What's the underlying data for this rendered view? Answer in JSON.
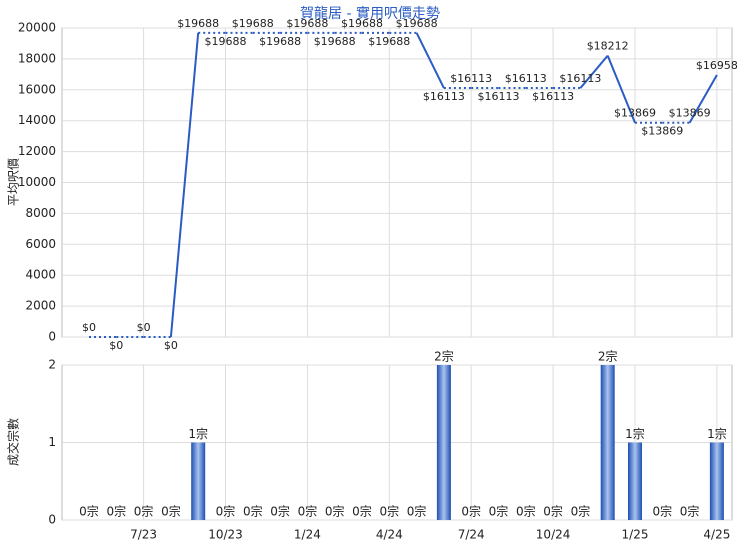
{
  "chart_data": [
    {
      "type": "line",
      "title": "賀龍居 - 實用呎價走勢",
      "y_label": "平均呎價",
      "color": "#2a5cc4",
      "grid": true,
      "values": [
        0,
        0,
        0,
        0,
        19688,
        19688,
        19688,
        19688,
        19688,
        19688,
        19688,
        19688,
        19688,
        16113,
        16113,
        16113,
        16113,
        16113,
        16113,
        18212,
        13869,
        13869,
        13869,
        16958
      ],
      "value_labels": [
        "$0",
        "$0",
        "$0",
        "$0",
        "$19688",
        "$19688",
        "$19688",
        "$19688",
        "$19688",
        "$19688",
        "$19688",
        "$19688",
        "$19688",
        "$16113",
        "$16113",
        "$16113",
        "$16113",
        "$16113",
        "$16113",
        "$18212",
        "$13869",
        "$13869",
        "$13869",
        "$16958"
      ],
      "ylim": [
        0,
        20000
      ],
      "yticks": [
        0,
        2000,
        4000,
        6000,
        8000,
        10000,
        12000,
        14000,
        16000,
        18000,
        20000
      ]
    },
    {
      "type": "bar",
      "y_label": "成交宗數",
      "color": "#2a5cc4",
      "grid": true,
      "categories": [
        null,
        null,
        "7/23",
        null,
        null,
        "10/23",
        null,
        null,
        "1/24",
        null,
        null,
        "4/24",
        null,
        null,
        "7/24",
        null,
        null,
        "10/24",
        null,
        null,
        "1/25",
        null,
        null,
        "4/25"
      ],
      "values": [
        0,
        0,
        0,
        0,
        1,
        0,
        0,
        0,
        0,
        0,
        0,
        0,
        0,
        2,
        0,
        0,
        0,
        0,
        0,
        2,
        1,
        0,
        0,
        1
      ],
      "value_labels": [
        "0宗",
        "0宗",
        "0宗",
        "0宗",
        "1宗",
        "0宗",
        "0宗",
        "0宗",
        "0宗",
        "0宗",
        "0宗",
        "0宗",
        "0宗",
        "2宗",
        "0宗",
        "0宗",
        "0宗",
        "0宗",
        "0宗",
        "2宗",
        "1宗",
        "0宗",
        "0宗",
        "1宗"
      ],
      "ylim": [
        0,
        2
      ],
      "yticks": [
        0,
        1,
        2
      ]
    }
  ]
}
